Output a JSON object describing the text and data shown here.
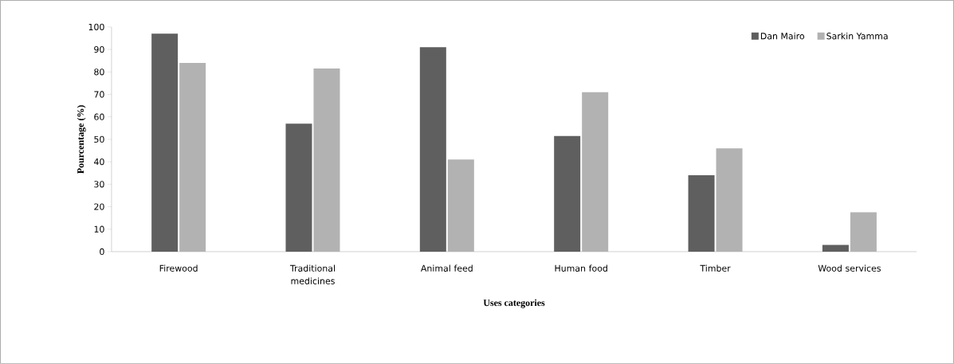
{
  "chart_data": {
    "type": "bar",
    "xlabel": "Uses categories",
    "ylabel": "Pourcentage (%)",
    "categories": [
      "Firewood",
      "Traditional medicines",
      "Animal feed",
      "Human food",
      "Timber",
      "Wood services"
    ],
    "series": [
      {
        "name": "Dan Mairo",
        "color": "#5f5f5f",
        "values": [
          97,
          57,
          91,
          51.5,
          34,
          3
        ]
      },
      {
        "name": "Sarkin Yamma",
        "color": "#b2b2b2",
        "values": [
          84,
          81.5,
          41,
          71,
          46,
          17.5
        ]
      }
    ],
    "ylim": [
      0,
      100
    ],
    "yticks": [
      0,
      10,
      20,
      30,
      40,
      50,
      60,
      70,
      80,
      90,
      100
    ],
    "legend": "top right",
    "grid": false
  }
}
